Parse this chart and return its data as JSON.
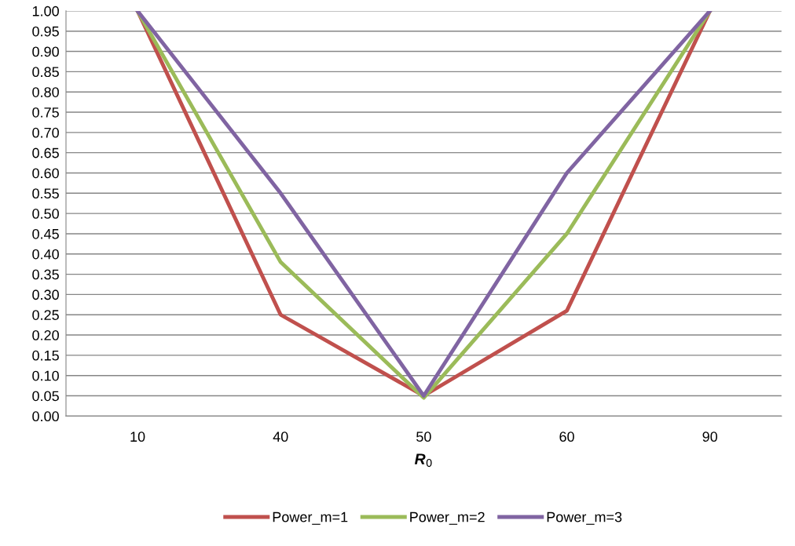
{
  "chart_data": {
    "type": "line",
    "xlabel": "R$_{0}$",
    "categories": [
      "10",
      "40",
      "50",
      "60",
      "90"
    ],
    "series": [
      {
        "name": "Power_m=1",
        "color": "#c0504d",
        "values": [
          1.0,
          0.25,
          0.05,
          0.26,
          1.0
        ]
      },
      {
        "name": "Power_m=2",
        "color": "#9bbb59",
        "values": [
          1.0,
          0.38,
          0.045,
          0.45,
          1.0
        ]
      },
      {
        "name": "Power_m=3",
        "color": "#8064a2",
        "values": [
          1.0,
          0.55,
          0.05,
          0.6,
          1.0
        ]
      }
    ],
    "ylim": [
      0,
      1
    ],
    "yticks": [
      {
        "value": 0,
        "label": "0.00"
      },
      {
        "value": 0.05,
        "label": "0.05"
      },
      {
        "value": 0.1,
        "label": "0.10"
      },
      {
        "value": 0.15,
        "label": "0.15"
      },
      {
        "value": 0.2,
        "label": "0.20"
      },
      {
        "value": 0.25,
        "label": "0.25"
      },
      {
        "value": 0.3,
        "label": "0.30"
      },
      {
        "value": 0.35,
        "label": "0.35"
      },
      {
        "value": 0.4,
        "label": "0.40"
      },
      {
        "value": 0.45,
        "label": "0.45"
      },
      {
        "value": 0.5,
        "label": "0.50"
      },
      {
        "value": 0.55,
        "label": "0.55"
      },
      {
        "value": 0.6,
        "label": "0.60"
      },
      {
        "value": 0.65,
        "label": "0.65"
      },
      {
        "value": 0.7,
        "label": "0.70"
      },
      {
        "value": 0.75,
        "label": "0.75"
      },
      {
        "value": 0.8,
        "label": "0.80"
      },
      {
        "value": 0.85,
        "label": "0.85"
      },
      {
        "value": 0.9,
        "label": "0.90"
      },
      {
        "value": 0.95,
        "label": "0.95"
      },
      {
        "value": 1,
        "label": "1.00"
      }
    ],
    "grid": "y",
    "legend": "bottom",
    "marker": "none",
    "line_style": "solid"
  }
}
